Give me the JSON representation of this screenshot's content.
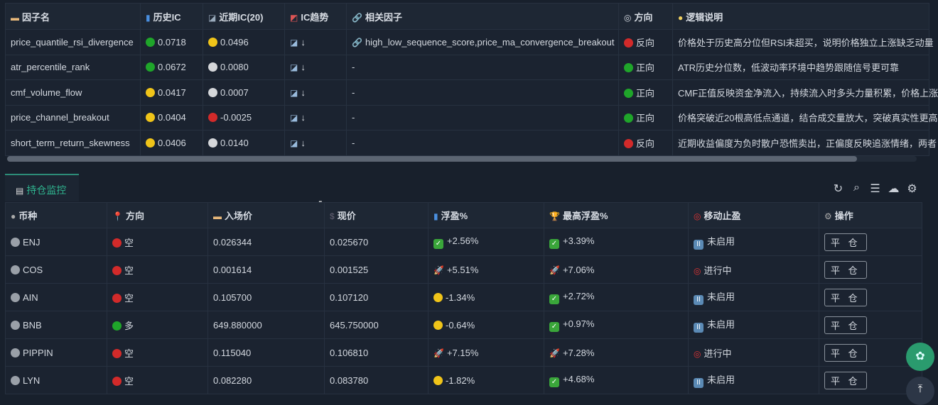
{
  "factor_table": {
    "headers": {
      "name": "因子名",
      "hist_ic": "历史IC",
      "recent_ic": "近期IC(20)",
      "trend": "IC趋势",
      "related": "相关因子",
      "direction": "方向",
      "logic": "逻辑说明"
    },
    "rows": [
      {
        "name": "price_quantile_rsi_divergence",
        "hist_ic": "0.0718",
        "hist_color": "#1fa52a",
        "recent_ic": "0.0496",
        "recent_color": "#f0c419",
        "trend": "↓",
        "related": "high_low_sequence_score,price_ma_convergence_breakout",
        "direction": "反向",
        "dir_color": "#d22a2a",
        "logic": "价格处于历史高分位但RSI未超买，说明价格独立上涨缺乏动量"
      },
      {
        "name": "atr_percentile_rank",
        "hist_ic": "0.0672",
        "hist_color": "#1fa52a",
        "recent_ic": "0.0080",
        "recent_color": "#d5d7da",
        "trend": "↓",
        "related": "-",
        "direction": "正向",
        "dir_color": "#1fa52a",
        "logic": "ATR历史分位数，低波动率环境中趋势跟随信号更可靠"
      },
      {
        "name": "cmf_volume_flow",
        "hist_ic": "0.0417",
        "hist_color": "#f0c419",
        "recent_ic": "0.0007",
        "recent_color": "#d5d7da",
        "trend": "↓",
        "related": "-",
        "direction": "正向",
        "dir_color": "#1fa52a",
        "logic": "CMF正值反映资金净流入，持续流入时多头力量积累，价格上涨"
      },
      {
        "name": "price_channel_breakout",
        "hist_ic": "0.0404",
        "hist_color": "#f0c419",
        "recent_ic": "-0.0025",
        "recent_color": "#d22a2a",
        "trend": "↓",
        "related": "-",
        "direction": "正向",
        "dir_color": "#1fa52a",
        "logic": "价格突破近20根高低点通道，结合成交量放大，突破真实性更高"
      },
      {
        "name": "short_term_return_skewness",
        "hist_ic": "0.0406",
        "hist_color": "#f0c419",
        "recent_ic": "0.0140",
        "recent_color": "#d5d7da",
        "trend": "↓",
        "related": "-",
        "direction": "反向",
        "dir_color": "#d22a2a",
        "logic": "近期收益偏度为负时散户恐慌卖出，正偏度反映追涨情绪，两者"
      }
    ],
    "scroll_position": 0.0
  },
  "positions": {
    "tab_label": "持仓监控",
    "toolbar": [
      "refresh-icon",
      "search-icon",
      "menu-icon",
      "cloud-download-icon",
      "settings-icon"
    ],
    "headers": {
      "symbol": "币种",
      "direction": "方向",
      "entry": "入场价",
      "current": "现价",
      "pnl": "浮盈%",
      "max_pnl": "最高浮盈%",
      "trailing": "移动止盈",
      "action": "操作"
    },
    "rows": [
      {
        "symbol": "ENJ",
        "direction": "空",
        "dir_color": "#d22a2a",
        "entry": "0.026344",
        "current": "0.025670",
        "pnl": "+2.56%",
        "pnl_icon": "check",
        "max_pnl": "+3.39%",
        "max_icon": "check",
        "trailing": "未启用",
        "trail_icon": "pause",
        "action": "平 仓"
      },
      {
        "symbol": "COS",
        "direction": "空",
        "dir_color": "#d22a2a",
        "entry": "0.001614",
        "current": "0.001525",
        "pnl": "+5.51%",
        "pnl_icon": "rocket",
        "max_pnl": "+7.06%",
        "max_icon": "rocket",
        "trailing": "进行中",
        "trail_icon": "target",
        "action": "平 仓"
      },
      {
        "symbol": "AIN",
        "direction": "空",
        "dir_color": "#d22a2a",
        "entry": "0.105700",
        "current": "0.107120",
        "pnl": "-1.34%",
        "pnl_icon": "yellow",
        "max_pnl": "+2.72%",
        "max_icon": "check",
        "trailing": "未启用",
        "trail_icon": "pause",
        "action": "平 仓"
      },
      {
        "symbol": "BNB",
        "direction": "多",
        "dir_color": "#1fa52a",
        "entry": "649.880000",
        "current": "645.750000",
        "pnl": "-0.64%",
        "pnl_icon": "yellow",
        "max_pnl": "+0.97%",
        "max_icon": "check",
        "trailing": "未启用",
        "trail_icon": "pause",
        "action": "平 仓"
      },
      {
        "symbol": "PIPPIN",
        "direction": "空",
        "dir_color": "#d22a2a",
        "entry": "0.115040",
        "current": "0.106810",
        "pnl": "+7.15%",
        "pnl_icon": "rocket",
        "max_pnl": "+7.28%",
        "max_icon": "rocket",
        "trailing": "进行中",
        "trail_icon": "target",
        "action": "平 仓"
      },
      {
        "symbol": "LYN",
        "direction": "空",
        "dir_color": "#d22a2a",
        "entry": "0.082280",
        "current": "0.083780",
        "pnl": "-1.82%",
        "pnl_icon": "yellow",
        "max_pnl": "+4.68%",
        "max_icon": "check",
        "trailing": "未启用",
        "trail_icon": "pause",
        "action": "平 仓"
      }
    ]
  }
}
